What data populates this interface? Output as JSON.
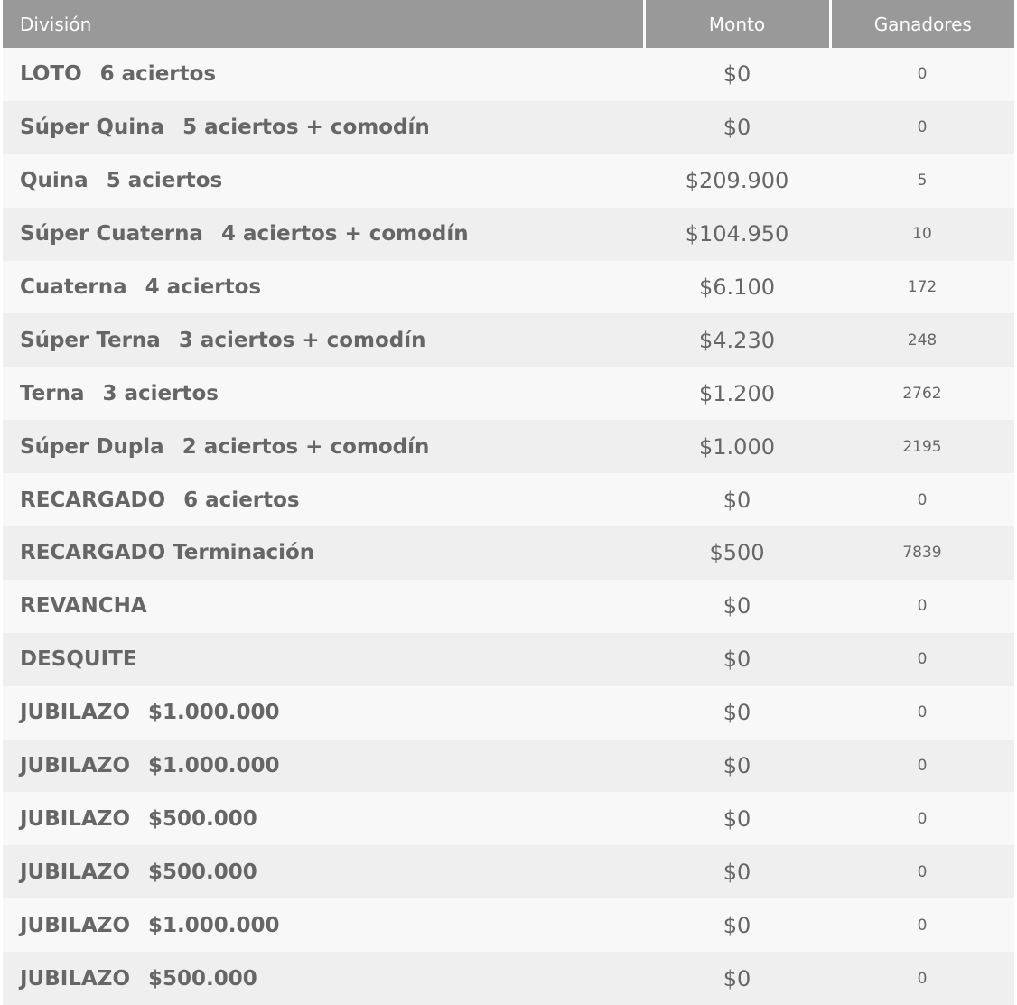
{
  "header": {
    "division": "División",
    "monto": "Monto",
    "ganadores": "Ganadores"
  },
  "rows": [
    {
      "name": "LOTO",
      "detail": "6 aciertos",
      "monto": "$0",
      "ganadores": "0"
    },
    {
      "name": "Súper Quina",
      "detail": "5 aciertos + comodín",
      "monto": "$0",
      "ganadores": "0"
    },
    {
      "name": "Quina",
      "detail": "5 aciertos",
      "monto": "$209.900",
      "ganadores": "5"
    },
    {
      "name": "Súper Cuaterna",
      "detail": "4 aciertos + comodín",
      "monto": "$104.950",
      "ganadores": "10"
    },
    {
      "name": "Cuaterna",
      "detail": "4 aciertos",
      "monto": "$6.100",
      "ganadores": "172"
    },
    {
      "name": "Súper Terna",
      "detail": "3 aciertos + comodín",
      "monto": "$4.230",
      "ganadores": "248"
    },
    {
      "name": "Terna",
      "detail": "3 aciertos",
      "monto": "$1.200",
      "ganadores": "2762"
    },
    {
      "name": "Súper Dupla",
      "detail": "2 aciertos + comodín",
      "monto": "$1.000",
      "ganadores": "2195"
    },
    {
      "name": "RECARGADO",
      "detail": "6 aciertos",
      "monto": "$0",
      "ganadores": "0"
    },
    {
      "name": "RECARGADO Terminación",
      "detail": "",
      "monto": "$500",
      "ganadores": "7839"
    },
    {
      "name": "REVANCHA",
      "detail": "",
      "monto": "$0",
      "ganadores": "0"
    },
    {
      "name": "DESQUITE",
      "detail": "",
      "monto": "$0",
      "ganadores": "0"
    },
    {
      "name": "JUBILAZO",
      "detail": "$1.000.000",
      "monto": "$0",
      "ganadores": "0"
    },
    {
      "name": "JUBILAZO",
      "detail": "$1.000.000",
      "monto": "$0",
      "ganadores": "0"
    },
    {
      "name": "JUBILAZO",
      "detail": "$500.000",
      "monto": "$0",
      "ganadores": "0"
    },
    {
      "name": "JUBILAZO",
      "detail": "$500.000",
      "monto": "$0",
      "ganadores": "0"
    },
    {
      "name": "JUBILAZO",
      "detail": "$1.000.000",
      "monto": "$0",
      "ganadores": "0"
    },
    {
      "name": "JUBILAZO",
      "detail": "$500.000",
      "monto": "$0",
      "ganadores": "0"
    }
  ]
}
